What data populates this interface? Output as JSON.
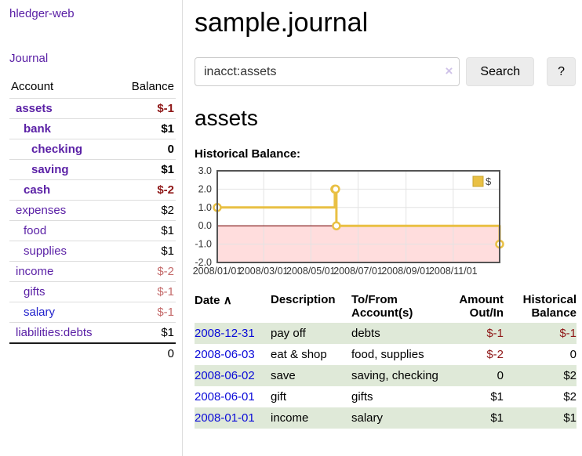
{
  "app": {
    "title": "hledger-web"
  },
  "sidebar": {
    "journal_link": "Journal",
    "accounts_table": {
      "headers": [
        "Account",
        "Balance"
      ],
      "rows": [
        {
          "account": "assets",
          "balance": "$-1",
          "indent": 0,
          "bold": true,
          "balance_class": "neg",
          "link_class": ""
        },
        {
          "account": "bank",
          "balance": "$1",
          "indent": 1,
          "bold": true,
          "balance_class": "",
          "link_class": ""
        },
        {
          "account": "checking",
          "balance": "0",
          "indent": 2,
          "bold": true,
          "balance_class": "",
          "link_class": ""
        },
        {
          "account": "saving",
          "balance": "$1",
          "indent": 2,
          "bold": true,
          "balance_class": "",
          "link_class": ""
        },
        {
          "account": "cash",
          "balance": "$-2",
          "indent": 1,
          "bold": true,
          "balance_class": "neg",
          "link_class": ""
        },
        {
          "account": "expenses",
          "balance": "$2",
          "indent": 0,
          "bold": false,
          "balance_class": "",
          "link_class": ""
        },
        {
          "account": "food",
          "balance": "$1",
          "indent": 1,
          "bold": false,
          "balance_class": "",
          "link_class": ""
        },
        {
          "account": "supplies",
          "balance": "$1",
          "indent": 1,
          "bold": false,
          "balance_class": "",
          "link_class": ""
        },
        {
          "account": "income",
          "balance": "$-2",
          "indent": 0,
          "bold": false,
          "balance_class": "neg-soft",
          "link_class": ""
        },
        {
          "account": "gifts",
          "balance": "$-1",
          "indent": 1,
          "bold": false,
          "balance_class": "neg-soft",
          "link_class": ""
        },
        {
          "account": "salary",
          "balance": "$-1",
          "indent": 1,
          "bold": false,
          "balance_class": "neg-soft",
          "link_class": "blue-link"
        },
        {
          "account": "liabilities:debts",
          "balance": "$1",
          "indent": 0,
          "bold": false,
          "balance_class": "",
          "link_class": ""
        }
      ],
      "total": "0"
    }
  },
  "main": {
    "title": "sample.journal",
    "search": {
      "value": "inacct:assets",
      "clear_icon": "×",
      "button_label": "Search",
      "help_label": "?"
    },
    "account_heading": "assets",
    "chart_label": "Historical Balance:"
  },
  "chart_data": {
    "type": "line",
    "title": "Historical Balance",
    "step": true,
    "series": [
      {
        "name": "$",
        "color": "#e9c044",
        "points": [
          [
            "2008-01-01",
            1
          ],
          [
            "2008-06-01",
            2
          ],
          [
            "2008-06-02",
            2
          ],
          [
            "2008-06-03",
            0
          ],
          [
            "2008-12-31",
            -1
          ]
        ]
      }
    ],
    "x_range": [
      "2008-01-01",
      "2008-12-31"
    ],
    "x_ticks": [
      "2008/01/01",
      "2008/03/01",
      "2008/05/01",
      "2008/07/01",
      "2008/09/01",
      "2008/11/01"
    ],
    "y_ticks": [
      3.0,
      2.0,
      1.0,
      0.0,
      -1.0,
      -2.0
    ],
    "ylim": [
      -2,
      3
    ],
    "legend_position": "top-right",
    "grid": true,
    "negative_region_color": "#ffdddd",
    "zero_line_color": "#7c1010",
    "border_color": "#545454"
  },
  "transactions": {
    "headers": [
      "Date",
      "Description",
      "To/From Account(s)",
      "Amount Out/In",
      "Historical Balance"
    ],
    "sort_icon": "∧",
    "rows": [
      {
        "date": "2008-12-31",
        "description": "pay off",
        "accounts": "debts",
        "amount": "$-1",
        "balance": "$-1",
        "amount_neg": true,
        "balance_neg": true
      },
      {
        "date": "2008-06-03",
        "description": "eat & shop",
        "accounts": "food, supplies",
        "amount": "$-2",
        "balance": "0",
        "amount_neg": true,
        "balance_neg": false
      },
      {
        "date": "2008-06-02",
        "description": "save",
        "accounts": "saving, checking",
        "amount": "0",
        "balance": "$2",
        "amount_neg": false,
        "balance_neg": false
      },
      {
        "date": "2008-06-01",
        "description": "gift",
        "accounts": "gifts",
        "amount": "$1",
        "balance": "$2",
        "amount_neg": false,
        "balance_neg": false
      },
      {
        "date": "2008-01-01",
        "description": "income",
        "accounts": "salary",
        "amount": "$1",
        "balance": "$1",
        "amount_neg": false,
        "balance_neg": false
      }
    ]
  }
}
